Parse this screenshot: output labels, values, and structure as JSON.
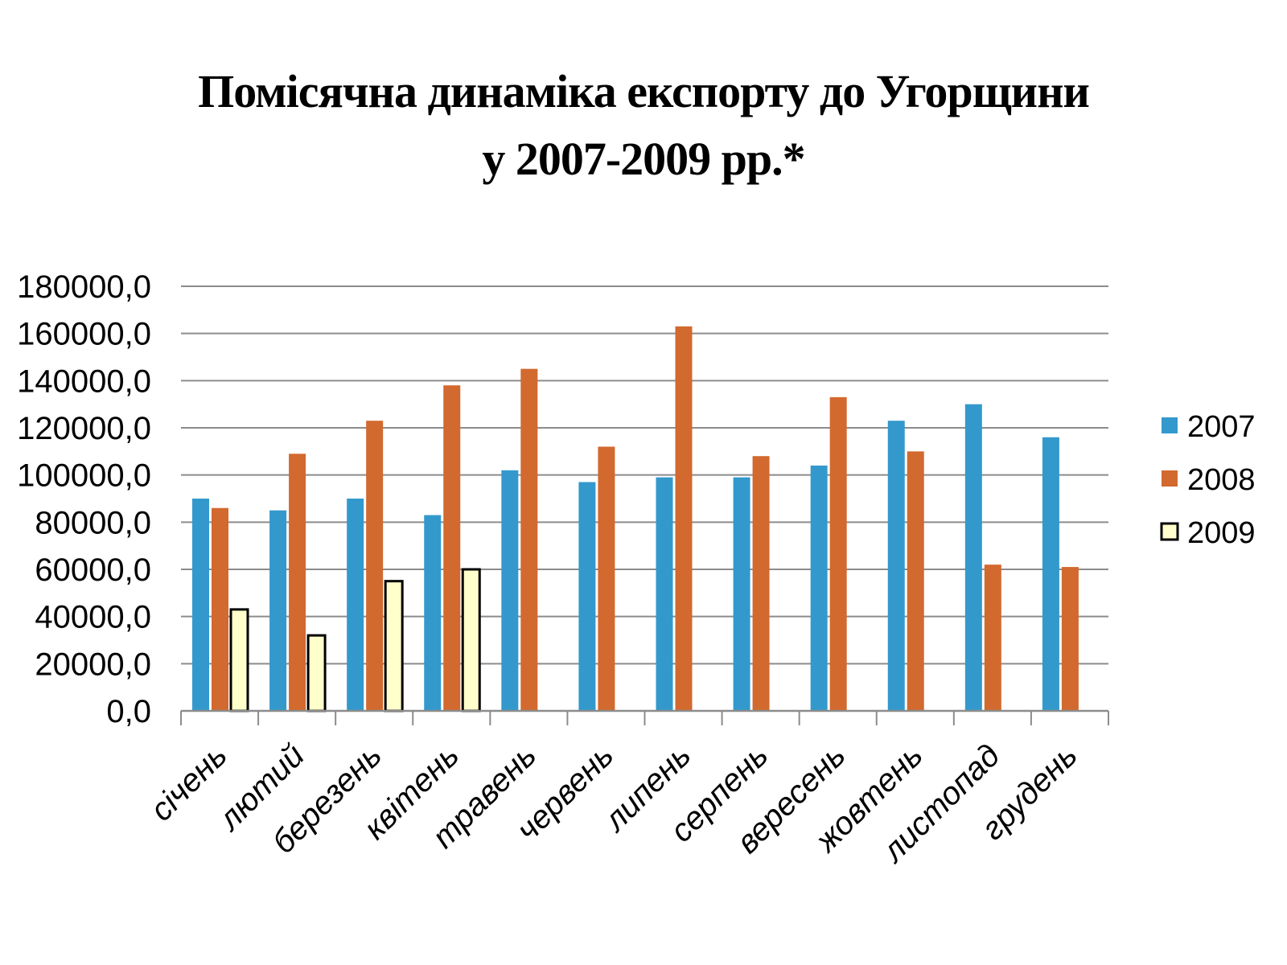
{
  "chart_data": {
    "type": "bar",
    "title_lines": [
      "Помісячна динаміка експорту до Угорщини",
      "у 2007-2009 рр.*"
    ],
    "categories": [
      "січень",
      "лютий",
      "березень",
      "квітень",
      "травень",
      "червень",
      "липень",
      "серпень",
      "вересень",
      "жовтень",
      "листопад",
      "грудень"
    ],
    "series": [
      {
        "name": "2007",
        "color": "#3399CC",
        "values": [
          90000,
          85000,
          90000,
          83000,
          102000,
          97000,
          99000,
          99000,
          104000,
          123000,
          130000,
          116000
        ]
      },
      {
        "name": "2008",
        "color": "#D2692E",
        "values": [
          86000,
          109000,
          123000,
          138000,
          145000,
          112000,
          163000,
          108000,
          133000,
          110000,
          62000,
          61000
        ]
      },
      {
        "name": "2009",
        "color": "#FFFFCC",
        "stroke": "#000000",
        "values": [
          43000,
          32000,
          55000,
          60000,
          null,
          null,
          null,
          null,
          null,
          null,
          null,
          null
        ]
      }
    ],
    "ylim": [
      0,
      180000
    ],
    "yticks": [
      {
        "value": 0,
        "label": "0,0"
      },
      {
        "value": 20000,
        "label": "20000,0"
      },
      {
        "value": 40000,
        "label": "40000,0"
      },
      {
        "value": 60000,
        "label": "60000,0"
      },
      {
        "value": 80000,
        "label": "80000,0"
      },
      {
        "value": 100000,
        "label": "100000,0"
      },
      {
        "value": 120000,
        "label": "120000,0"
      },
      {
        "value": 140000,
        "label": "140000,0"
      },
      {
        "value": 160000,
        "label": "160000,0"
      },
      {
        "value": 180000,
        "label": "180000,0"
      }
    ],
    "grid": true,
    "gridline_color": "#8C8C8C",
    "legend_position": "right",
    "xlabel": "",
    "ylabel": ""
  }
}
